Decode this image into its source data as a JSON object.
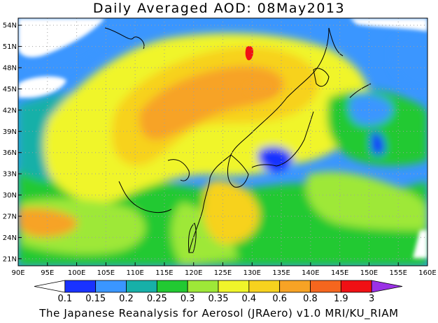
{
  "title": "Daily Averaged AOD: 08May2013",
  "credit": "The Japanese Reanalysis for Aerosol (JRAero) v1.0 MRI/KU_RIAM",
  "map": {
    "lon_range": [
      90,
      160
    ],
    "lat_range": [
      20,
      55
    ],
    "lon_ticks": [
      {
        "value": 90,
        "label": "90E"
      },
      {
        "value": 95,
        "label": "95E"
      },
      {
        "value": 100,
        "label": "100E"
      },
      {
        "value": 105,
        "label": "105E"
      },
      {
        "value": 110,
        "label": "110E"
      },
      {
        "value": 115,
        "label": "115E"
      },
      {
        "value": 120,
        "label": "120E"
      },
      {
        "value": 125,
        "label": "125E"
      },
      {
        "value": 130,
        "label": "130E"
      },
      {
        "value": 135,
        "label": "135E"
      },
      {
        "value": 140,
        "label": "140E"
      },
      {
        "value": 145,
        "label": "145E"
      },
      {
        "value": 150,
        "label": "150E"
      },
      {
        "value": 155,
        "label": "155E"
      },
      {
        "value": 160,
        "label": "160E"
      }
    ],
    "lat_ticks": [
      {
        "value": 21,
        "label": "21N"
      },
      {
        "value": 24,
        "label": "24N"
      },
      {
        "value": 27,
        "label": "27N"
      },
      {
        "value": 30,
        "label": "30N"
      },
      {
        "value": 33,
        "label": "33N"
      },
      {
        "value": 36,
        "label": "36N"
      },
      {
        "value": 39,
        "label": "39N"
      },
      {
        "value": 42,
        "label": "42N"
      },
      {
        "value": 45,
        "label": "45N"
      },
      {
        "value": 48,
        "label": "48N"
      },
      {
        "value": 51,
        "label": "51N"
      },
      {
        "value": 54,
        "label": "54N"
      }
    ]
  },
  "colorbar": {
    "labels": [
      "0.1",
      "0.15",
      "0.2",
      "0.25",
      "0.3",
      "0.35",
      "0.4",
      "0.6",
      "0.8",
      "1.9",
      "3"
    ],
    "colors": [
      "#ffffff",
      "#1932ff",
      "#3a96ff",
      "#17b0a8",
      "#22c932",
      "#9ee838",
      "#f0f52a",
      "#f7d21e",
      "#f7a325",
      "#f5661e",
      "#f01014",
      "#9b32e6"
    ]
  }
}
